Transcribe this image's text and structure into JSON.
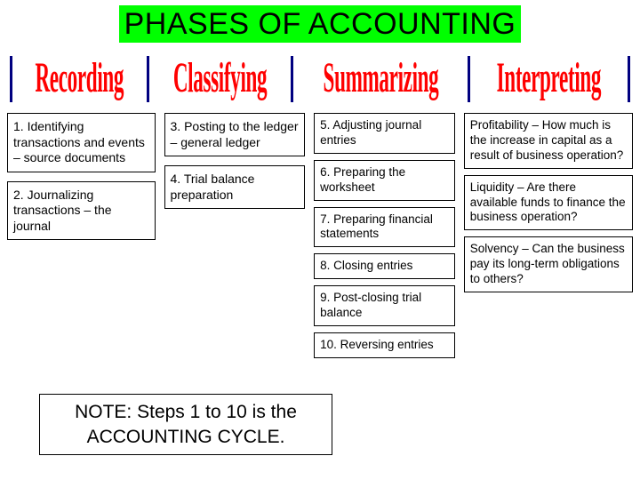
{
  "title": "PHASES OF ACCOUNTING",
  "title_bg": "#00ff00",
  "heading_color": "#ff0000",
  "divider_color": "#000080",
  "headings": [
    "Recording",
    "Classifying",
    "Summarizing",
    "Interpreting"
  ],
  "columns": {
    "recording": [
      "1. Identifying transactions and events – source documents",
      "2. Journalizing transactions – the journal"
    ],
    "classifying": [
      "3. Posting to the ledger – general ledger",
      "4. Trial balance preparation"
    ],
    "summarizing": [
      "5. Adjusting journal entries",
      "6. Preparing the worksheet",
      "7. Preparing financial statements",
      "8. Closing entries",
      "9. Post-closing trial balance",
      "10. Reversing entries"
    ],
    "interpreting": [
      "Profitability – How much is the increase in capital as a result of business operation?",
      "Liquidity – Are there available funds to finance the business operation?",
      "Solvency – Can the business pay its long-term obligations to others?"
    ]
  },
  "note": "NOTE: Steps 1 to 10 is the ACCOUNTING CYCLE."
}
